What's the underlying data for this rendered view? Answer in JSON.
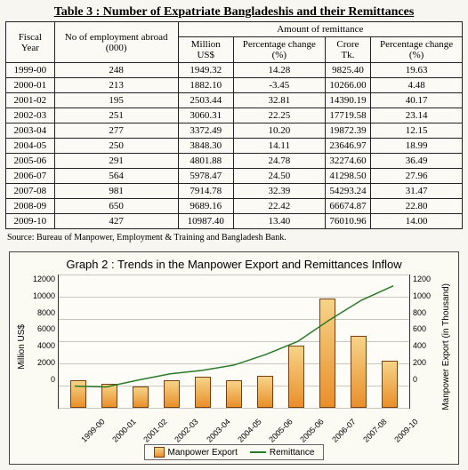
{
  "table": {
    "title": "Table  3 : Number of Expatriate Bangladeshis and their Remittances",
    "header_group": "Amount of remittance",
    "columns": [
      "Fiscal Year",
      "No of employment abroad (000)",
      "Million US$",
      "Percentage change (%)",
      "Crore Tk.",
      "Percentage change (%)"
    ],
    "rows": [
      [
        "1999-00",
        "248",
        "1949.32",
        "14.28",
        "9825.40",
        "19.63"
      ],
      [
        "2000-01",
        "213",
        "1882.10",
        "-3.45",
        "10266.00",
        "4.48"
      ],
      [
        "2001-02",
        "195",
        "2503.44",
        "32.81",
        "14390.19",
        "40.17"
      ],
      [
        "2002-03",
        "251",
        "3060.31",
        "22.25",
        "17719.58",
        "23.14"
      ],
      [
        "2003-04",
        "277",
        "3372.49",
        "10.20",
        "19872.39",
        "12.15"
      ],
      [
        "2004-05",
        "250",
        "3848.30",
        "14.11",
        "23646.97",
        "18.99"
      ],
      [
        "2005-06",
        "291",
        "4801.88",
        "24.78",
        "32274.60",
        "36.49"
      ],
      [
        "2006-07",
        "564",
        "5978.47",
        "24.50",
        "41298.50",
        "27.96"
      ],
      [
        "2007-08",
        "981",
        "7914.78",
        "32.39",
        "54293.24",
        "31.47"
      ],
      [
        "2008-09",
        "650",
        "9689.16",
        "22.42",
        "66674.87",
        "22.80"
      ],
      [
        "2009-10",
        "427",
        "10987.40",
        "13.40",
        "76010.96",
        "14.00"
      ]
    ],
    "source": "Source:  Bureau of Manpower, Employment & Training and Bangladesh Bank."
  },
  "chart": {
    "title": "Graph   2 : Trends in the Manpower Export and Remittances Inflow",
    "type": "bar+line",
    "categories": [
      "1999-00",
      "2000-01",
      "2001-02",
      "2002-03",
      "2003-04",
      "2004-05",
      "2005-06",
      "2005-06",
      "2006-07",
      "2007-08",
      "2009-10"
    ],
    "left_axis": {
      "label": "Million US$",
      "min": 0,
      "max": 12000,
      "step": 2000,
      "ticks": [
        "12000",
        "10000",
        "8000",
        "6000",
        "4000",
        "2000",
        "0"
      ]
    },
    "right_axis": {
      "label": "Manpower Export (in Thousand)",
      "min": 0,
      "max": 1200,
      "step": 200,
      "ticks": [
        "1200",
        "1000",
        "800",
        "600",
        "400",
        "200",
        "0"
      ]
    },
    "bars": {
      "label": "Manpower Export",
      "color_top": "#f6d488",
      "color_bottom": "#e98f2a",
      "border": "#7a3f10",
      "values": [
        248,
        213,
        195,
        251,
        277,
        250,
        291,
        564,
        981,
        650,
        427
      ]
    },
    "line": {
      "label": "Remittance",
      "color": "#2a7a2a",
      "width": 2,
      "values": [
        1949,
        1882,
        2503,
        3060,
        3372,
        3848,
        4802,
        5978,
        7915,
        9689,
        10987
      ]
    },
    "grid_color": "#c9c7bd",
    "background_color": "#fdfcf7"
  }
}
